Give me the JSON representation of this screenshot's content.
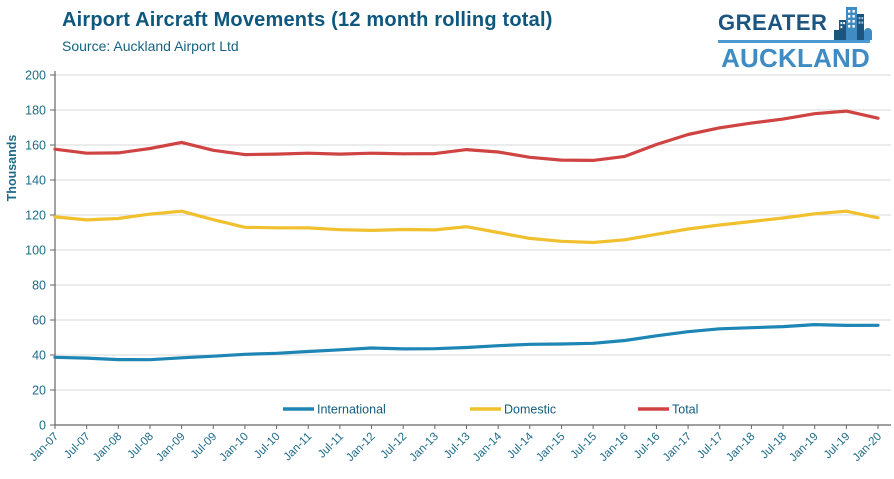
{
  "header": {
    "title": "Airport Aircraft Movements (12 month rolling total)",
    "source": "Source: Auckland Airport Ltd"
  },
  "logo": {
    "line1": "GREATER",
    "line2": "AUCKLAND",
    "color_dark": "#1d5581",
    "color_light": "#3f8cc5"
  },
  "chart_data": {
    "type": "line",
    "title": "Airport Aircraft Movements (12 month rolling total)",
    "xlabel": "",
    "ylabel": "Thousands",
    "ylim": [
      0,
      200
    ],
    "ytick_step": 20,
    "yticks": [
      "0",
      "20",
      "40",
      "60",
      "80",
      "100",
      "120",
      "140",
      "160",
      "180",
      "200"
    ],
    "grid": true,
    "legend_position": "bottom-center-inside",
    "categories": [
      "Jan-07",
      "Jul-07",
      "Jan-08",
      "Jul-08",
      "Jan-09",
      "Jul-09",
      "Jan-10",
      "Jul-10",
      "Jan-11",
      "Jul-11",
      "Jan-12",
      "Jul-12",
      "Jan-13",
      "Jul-13",
      "Jan-14",
      "Jul-14",
      "Jan-15",
      "Jul-15",
      "Jan-16",
      "Jul-16",
      "Jan-17",
      "Jul-17",
      "Jan-18",
      "Jul-18",
      "Jan-19",
      "Jul-19",
      "Jan-20"
    ],
    "series": [
      {
        "name": "International",
        "color": "#1e86b5",
        "values": [
          38.7,
          38.2,
          37.4,
          37.3,
          38.4,
          39.3,
          40.4,
          41.0,
          42.0,
          43.0,
          44.0,
          43.5,
          43.6,
          44.3,
          45.3,
          46.1,
          46.3,
          46.7,
          48.3,
          51.0,
          53.3,
          55.0,
          55.6,
          56.2,
          57.4,
          56.9,
          57.0
        ]
      },
      {
        "name": "Domestic",
        "color": "#f0c02f",
        "values": [
          118.9,
          117.2,
          118.0,
          120.5,
          122.2,
          117.3,
          113.0,
          112.7,
          112.6,
          111.6,
          111.2,
          111.7,
          111.5,
          113.3,
          110.0,
          106.6,
          105.0,
          104.3,
          105.8,
          109.0,
          112.0,
          114.3,
          116.3,
          118.3,
          120.7,
          122.2,
          118.4
        ]
      },
      {
        "name": "Total",
        "color": "#d04343",
        "values": [
          157.6,
          155.3,
          155.5,
          158.0,
          161.5,
          157.0,
          154.5,
          154.8,
          155.3,
          154.8,
          155.3,
          155.0,
          155.1,
          157.4,
          156.0,
          153.0,
          151.4,
          151.2,
          153.5,
          160.3,
          166.0,
          169.8,
          172.5,
          174.8,
          177.9,
          179.4,
          175.3
        ]
      }
    ]
  }
}
